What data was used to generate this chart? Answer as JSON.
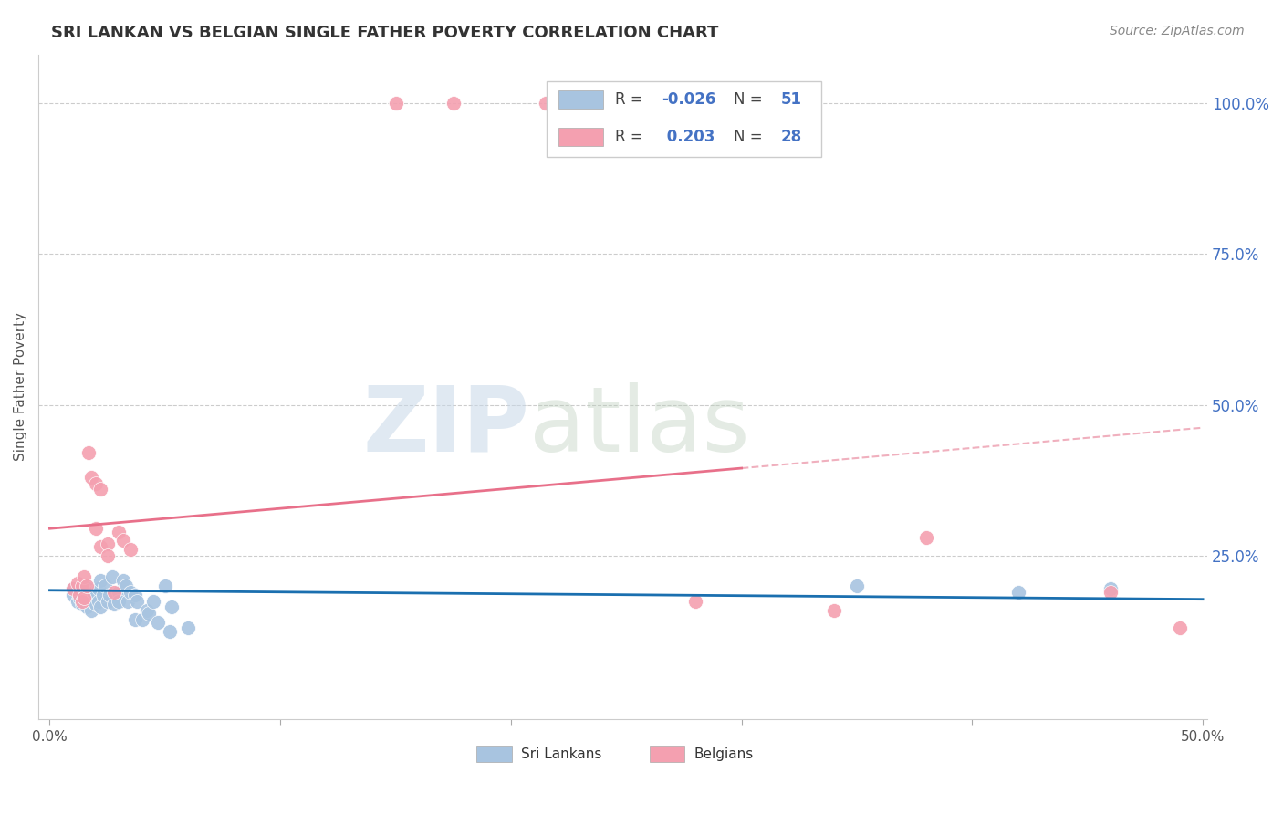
{
  "title": "SRI LANKAN VS BELGIAN SINGLE FATHER POVERTY CORRELATION CHART",
  "source": "Source: ZipAtlas.com",
  "ylabel": "Single Father Poverty",
  "right_yticks": [
    "100.0%",
    "75.0%",
    "50.0%",
    "25.0%"
  ],
  "right_ytick_vals": [
    1.0,
    0.75,
    0.5,
    0.25
  ],
  "sri_lankan_color": "#a8c4e0",
  "belgian_color": "#f4a0b0",
  "sri_lankan_line_color": "#1a6faf",
  "belgian_line_color": "#e8708a",
  "belgian_dash_color": "#f0b0be",
  "sri_lankan_points": [
    [
      0.01,
      0.195
    ],
    [
      0.01,
      0.185
    ],
    [
      0.012,
      0.175
    ],
    [
      0.012,
      0.195
    ],
    [
      0.013,
      0.19
    ],
    [
      0.013,
      0.18
    ],
    [
      0.014,
      0.195
    ],
    [
      0.014,
      0.17
    ],
    [
      0.015,
      0.185
    ],
    [
      0.015,
      0.175
    ],
    [
      0.016,
      0.2
    ],
    [
      0.016,
      0.165
    ],
    [
      0.017,
      0.175
    ],
    [
      0.017,
      0.195
    ],
    [
      0.018,
      0.185
    ],
    [
      0.018,
      0.16
    ],
    [
      0.019,
      0.19
    ],
    [
      0.019,
      0.175
    ],
    [
      0.02,
      0.185
    ],
    [
      0.02,
      0.17
    ],
    [
      0.021,
      0.175
    ],
    [
      0.021,
      0.195
    ],
    [
      0.022,
      0.21
    ],
    [
      0.022,
      0.165
    ],
    [
      0.023,
      0.185
    ],
    [
      0.024,
      0.2
    ],
    [
      0.025,
      0.175
    ],
    [
      0.026,
      0.185
    ],
    [
      0.027,
      0.215
    ],
    [
      0.028,
      0.17
    ],
    [
      0.03,
      0.19
    ],
    [
      0.03,
      0.175
    ],
    [
      0.032,
      0.21
    ],
    [
      0.033,
      0.2
    ],
    [
      0.034,
      0.175
    ],
    [
      0.035,
      0.19
    ],
    [
      0.037,
      0.185
    ],
    [
      0.037,
      0.145
    ],
    [
      0.038,
      0.175
    ],
    [
      0.04,
      0.145
    ],
    [
      0.042,
      0.16
    ],
    [
      0.043,
      0.155
    ],
    [
      0.045,
      0.175
    ],
    [
      0.047,
      0.14
    ],
    [
      0.05,
      0.2
    ],
    [
      0.052,
      0.125
    ],
    [
      0.053,
      0.165
    ],
    [
      0.06,
      0.13
    ],
    [
      0.35,
      0.2
    ],
    [
      0.42,
      0.19
    ],
    [
      0.46,
      0.195
    ]
  ],
  "belgian_points": [
    [
      0.01,
      0.195
    ],
    [
      0.012,
      0.205
    ],
    [
      0.013,
      0.185
    ],
    [
      0.014,
      0.2
    ],
    [
      0.014,
      0.175
    ],
    [
      0.015,
      0.215
    ],
    [
      0.015,
      0.18
    ],
    [
      0.016,
      0.2
    ],
    [
      0.017,
      0.42
    ],
    [
      0.018,
      0.38
    ],
    [
      0.02,
      0.37
    ],
    [
      0.02,
      0.295
    ],
    [
      0.022,
      0.36
    ],
    [
      0.022,
      0.265
    ],
    [
      0.025,
      0.27
    ],
    [
      0.025,
      0.25
    ],
    [
      0.028,
      0.19
    ],
    [
      0.03,
      0.29
    ],
    [
      0.032,
      0.275
    ],
    [
      0.035,
      0.26
    ],
    [
      0.15,
      1.0
    ],
    [
      0.175,
      1.0
    ],
    [
      0.215,
      1.0
    ],
    [
      0.28,
      0.175
    ],
    [
      0.34,
      0.16
    ],
    [
      0.38,
      0.28
    ],
    [
      0.46,
      0.19
    ],
    [
      0.49,
      0.13
    ]
  ],
  "xlim": [
    0.0,
    0.5
  ],
  "ylim": [
    0.0,
    1.05
  ],
  "figsize": [
    14.06,
    8.92
  ],
  "dpi": 100
}
